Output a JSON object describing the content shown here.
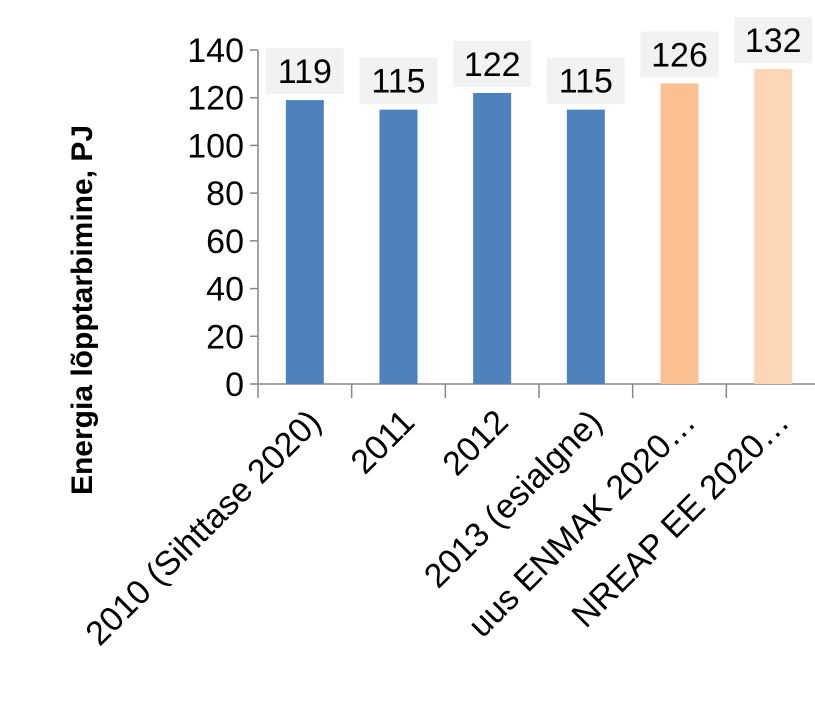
{
  "chart_data": {
    "type": "bar",
    "categories": [
      "2010 (Sihttase 2020)",
      "2011",
      "2012",
      "2013 (esialgne)",
      "uus ENMAK 2020…",
      "NREAP EE 2020…"
    ],
    "values": [
      119,
      115,
      122,
      115,
      126,
      132
    ],
    "bar_colors": [
      "#4f81bd",
      "#4f81bd",
      "#4f81bd",
      "#4f81bd",
      "#fac090",
      "#fcd5b5"
    ],
    "data_label_bg": "#f2f2f2",
    "title": "",
    "xlabel": "",
    "ylabel": "Energia lõpptarbimine, PJ",
    "ylim": [
      0,
      140
    ],
    "yticks": [
      0,
      20,
      40,
      60,
      80,
      100,
      120,
      140
    ],
    "grid": false,
    "legend": "none"
  }
}
